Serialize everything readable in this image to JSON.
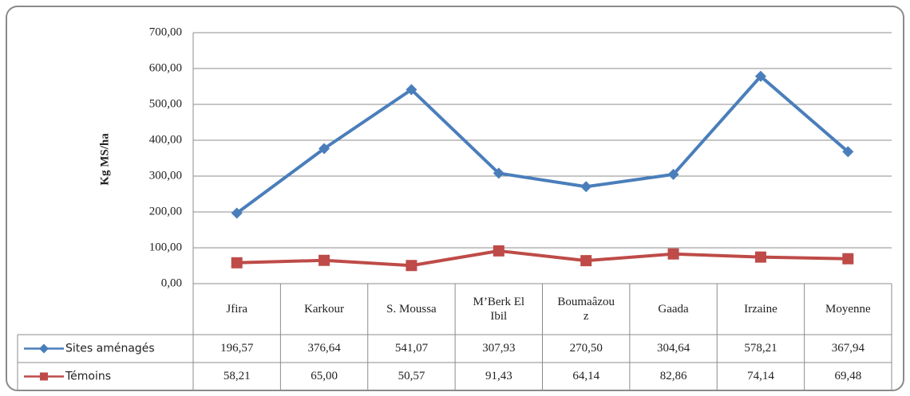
{
  "chart_data": {
    "type": "line",
    "y_label": "Kg MS/ha",
    "categories": [
      "Jfira",
      "Karkour",
      "S. Moussa",
      "M’Berk El Ibil",
      "Boumaâzouz",
      "Gaada",
      "Irzaine",
      "Moyenne"
    ],
    "series": [
      {
        "name": "Sites aménagés",
        "color": "#4a7ebb",
        "marker": "diamond",
        "values": [
          196.57,
          376.64,
          541.07,
          307.93,
          270.5,
          304.64,
          578.21,
          367.94
        ],
        "value_labels": [
          "196,57",
          "376,64",
          "541,07",
          "307,93",
          "270,50",
          "304,64",
          "578,21",
          "367,94"
        ]
      },
      {
        "name": "Témoins",
        "color": "#be4b48",
        "marker": "square",
        "values": [
          58.21,
          65.0,
          50.57,
          91.43,
          64.14,
          82.86,
          74.14,
          69.48
        ],
        "value_labels": [
          "58,21",
          "65,00",
          "50,57",
          "91,43",
          "64,14",
          "82,86",
          "74,14",
          "69,48"
        ]
      }
    ],
    "ylim": [
      0,
      700
    ],
    "yticks": [
      {
        "value": 0,
        "label": "0,00"
      },
      {
        "value": 100,
        "label": "100,00"
      },
      {
        "value": 200,
        "label": "200,00"
      },
      {
        "value": 300,
        "label": "300,00"
      },
      {
        "value": 400,
        "label": "400,00"
      },
      {
        "value": 500,
        "label": "500,00"
      },
      {
        "value": 600,
        "label": "600,00"
      },
      {
        "value": 700,
        "label": "700,00"
      }
    ],
    "grid": true
  }
}
